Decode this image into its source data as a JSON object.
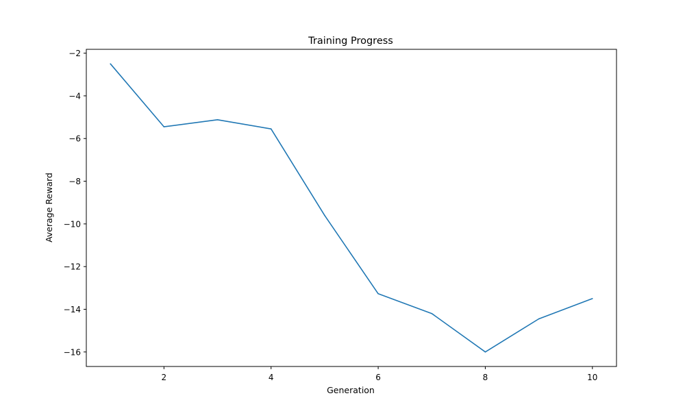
{
  "chart_data": {
    "type": "line",
    "title": "Training Progress",
    "xlabel": "Generation",
    "ylabel": "Average Reward",
    "xlim": [
      0.55,
      10.45
    ],
    "ylim": [
      -16.68,
      -1.82
    ],
    "xticks": [
      2,
      4,
      6,
      8,
      10
    ],
    "yticks": [
      -16,
      -14,
      -12,
      -10,
      -8,
      -6,
      -4,
      -2
    ],
    "grid": false,
    "legend": "none",
    "series": [
      {
        "x": [
          1,
          2,
          3,
          4,
          5,
          6,
          7,
          8,
          9,
          10
        ],
        "y": [
          -2.5,
          -5.45,
          -5.12,
          -5.55,
          -9.6,
          -13.27,
          -14.2,
          -16.0,
          -14.45,
          -13.5
        ],
        "color": "#1f77b4"
      }
    ]
  }
}
